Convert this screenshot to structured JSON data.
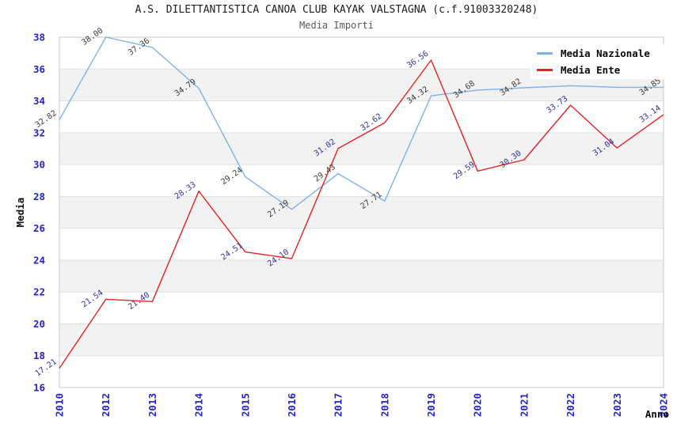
{
  "title": "A.S. DILETTANTISTICA CANOA CLUB KAYAK VALSTAGNA (c.f.91003320248)",
  "subtitle": "Media Importi",
  "legend": {
    "items": [
      {
        "label": "Media Nazionale",
        "color": "#7fb2e5"
      },
      {
        "label": "Media Ente",
        "color": "#e62222"
      }
    ]
  },
  "axes": {
    "y_label": "Media",
    "x_label": "Anno",
    "y_ticks": [
      38,
      36,
      34,
      32,
      30,
      28,
      26,
      24,
      22,
      20,
      18,
      16
    ],
    "tick_color": "#2323cc"
  },
  "colors": {
    "plot_border": "#c9c9c9",
    "grid_line": "#e2e2e2",
    "band_fill": "#f2f2f2",
    "title": "#1c1c1c",
    "subtitle": "#5a5a5a"
  },
  "chart_data": {
    "type": "line",
    "title": "A.S. DILETTANTISTICA CANOA CLUB KAYAK VALSTAGNA (c.f.91003320248)",
    "subtitle": "Media Importi",
    "xlabel": "Anno",
    "ylabel": "Media",
    "ylim": [
      16,
      38
    ],
    "grid": "horizontal-bands",
    "gray_bands": [
      [
        18,
        20
      ],
      [
        22,
        24
      ],
      [
        26,
        28
      ],
      [
        30,
        32
      ],
      [
        34,
        36
      ]
    ],
    "legend_position": "top-right",
    "categories": [
      "2010",
      "2012",
      "2013",
      "2014",
      "2015",
      "2016",
      "2017",
      "2018",
      "2019",
      "2020",
      "2021",
      "2022",
      "2023",
      "2024"
    ],
    "series": [
      {
        "name": "Media Nazionale",
        "color": "#7fb2e5",
        "label_color": "#3a3a3a",
        "values": [
          32.82,
          38.0,
          37.36,
          34.79,
          29.24,
          27.19,
          29.43,
          27.71,
          34.32,
          34.68,
          34.82,
          34.95,
          34.85,
          34.85
        ],
        "labels": [
          "32.82",
          "38.00",
          "37.36",
          "34.79",
          "29.24",
          "27.19",
          "29.43",
          "27.71",
          "34.32",
          "34.68",
          "34.82",
          "",
          "",
          "34.85"
        ]
      },
      {
        "name": "Media Ente",
        "color": "#e62222",
        "label_color": "#31319b",
        "values": [
          17.21,
          21.54,
          21.4,
          28.33,
          24.51,
          24.1,
          31.02,
          32.62,
          36.56,
          29.59,
          30.3,
          33.73,
          31.04,
          33.14
        ],
        "labels": [
          "17.21",
          "21.54",
          "21.40",
          "28.33",
          "24.51",
          "24.10",
          "31.02",
          "32.62",
          "36.56",
          "29.59",
          "30.30",
          "33.73",
          "31.04",
          "33.14"
        ]
      }
    ]
  }
}
